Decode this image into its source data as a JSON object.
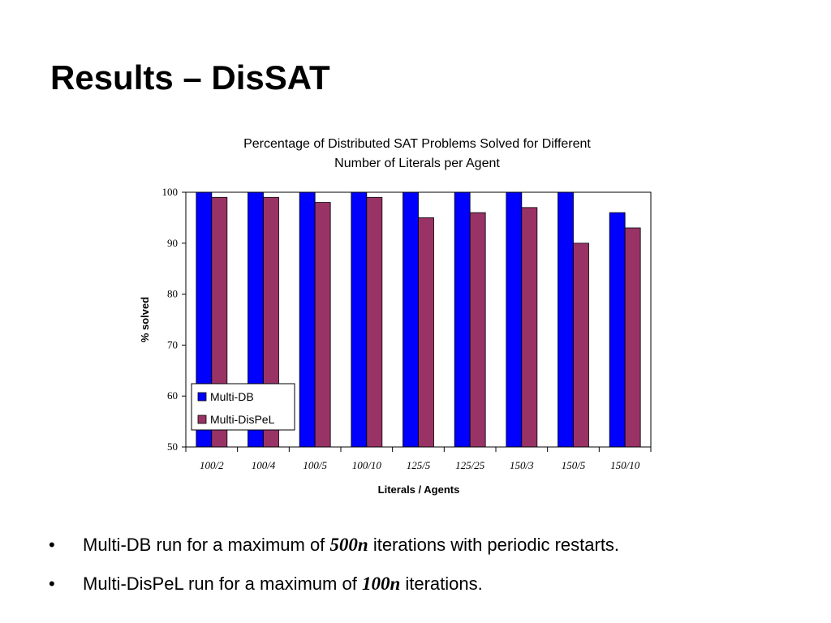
{
  "slide": {
    "title": "Results – DisSAT"
  },
  "chart_data": {
    "type": "bar",
    "title": "Percentage of Distributed SAT Problems Solved for Different Number of Literals per Agent",
    "title_lines": [
      "Percentage of Distributed SAT Problems Solved for Different",
      "Number of Literals per Agent"
    ],
    "xlabel": "Literals / Agents",
    "ylabel": "% solved",
    "ylim": [
      50,
      100
    ],
    "yticks": [
      50,
      60,
      70,
      80,
      90,
      100
    ],
    "grid": false,
    "legend_position": "bottom-left",
    "categories": [
      "100/2",
      "100/4",
      "100/5",
      "100/10",
      "125/5",
      "125/25",
      "150/3",
      "150/5",
      "150/10"
    ],
    "series": [
      {
        "name": "Multi-DB",
        "color": "#0000ff",
        "values": [
          100,
          100,
          100,
          100,
          100,
          100,
          100,
          100,
          96
        ]
      },
      {
        "name": "Multi-DisPeL",
        "color": "#993366",
        "values": [
          99,
          99,
          98,
          99,
          95,
          96,
          97,
          90,
          93
        ]
      }
    ]
  },
  "bullets": [
    {
      "symbol": "•",
      "before": "Multi-DB run for a maximum of ",
      "emph": "500n",
      "after": " iterations with periodic restarts."
    },
    {
      "symbol": "•",
      "before": "Multi-DisPeL run for a maximum of ",
      "emph": "100n",
      "after": " iterations."
    }
  ]
}
